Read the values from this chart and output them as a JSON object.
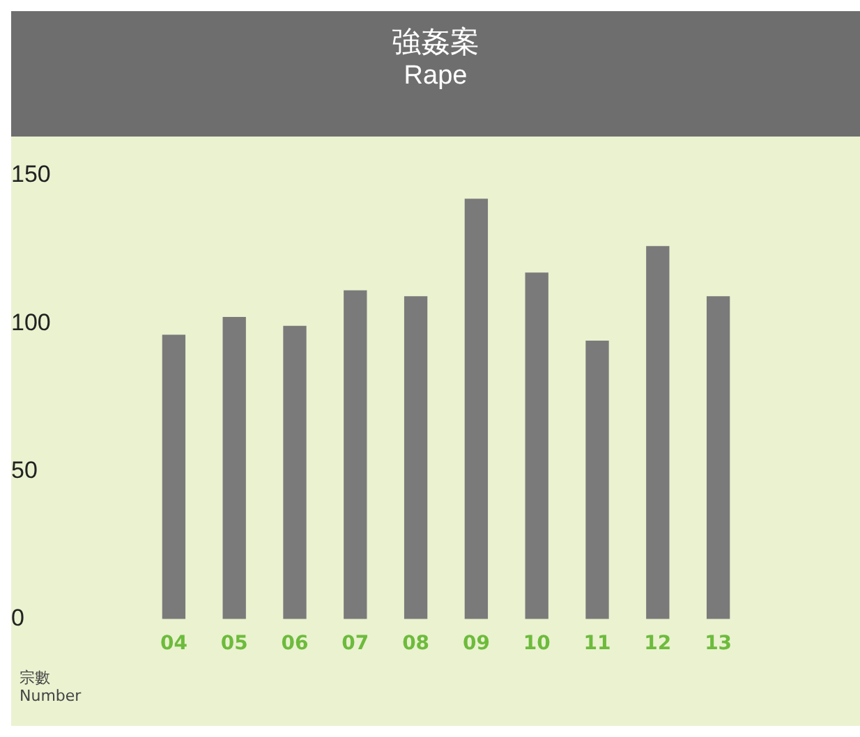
{
  "chart_data": {
    "type": "bar",
    "title": "強姦案",
    "subtitle": "Rape",
    "ylabel": "宗數\nNumber",
    "categories": [
      "04",
      "05",
      "06",
      "07",
      "08",
      "09",
      "10",
      "11",
      "12",
      "13"
    ],
    "values": [
      96,
      102,
      99,
      111,
      109,
      142,
      117,
      94,
      126,
      109
    ],
    "color": "#7a7a7a",
    "ylim": [
      0,
      150
    ],
    "yticks": [
      0,
      50,
      100,
      150
    ]
  }
}
